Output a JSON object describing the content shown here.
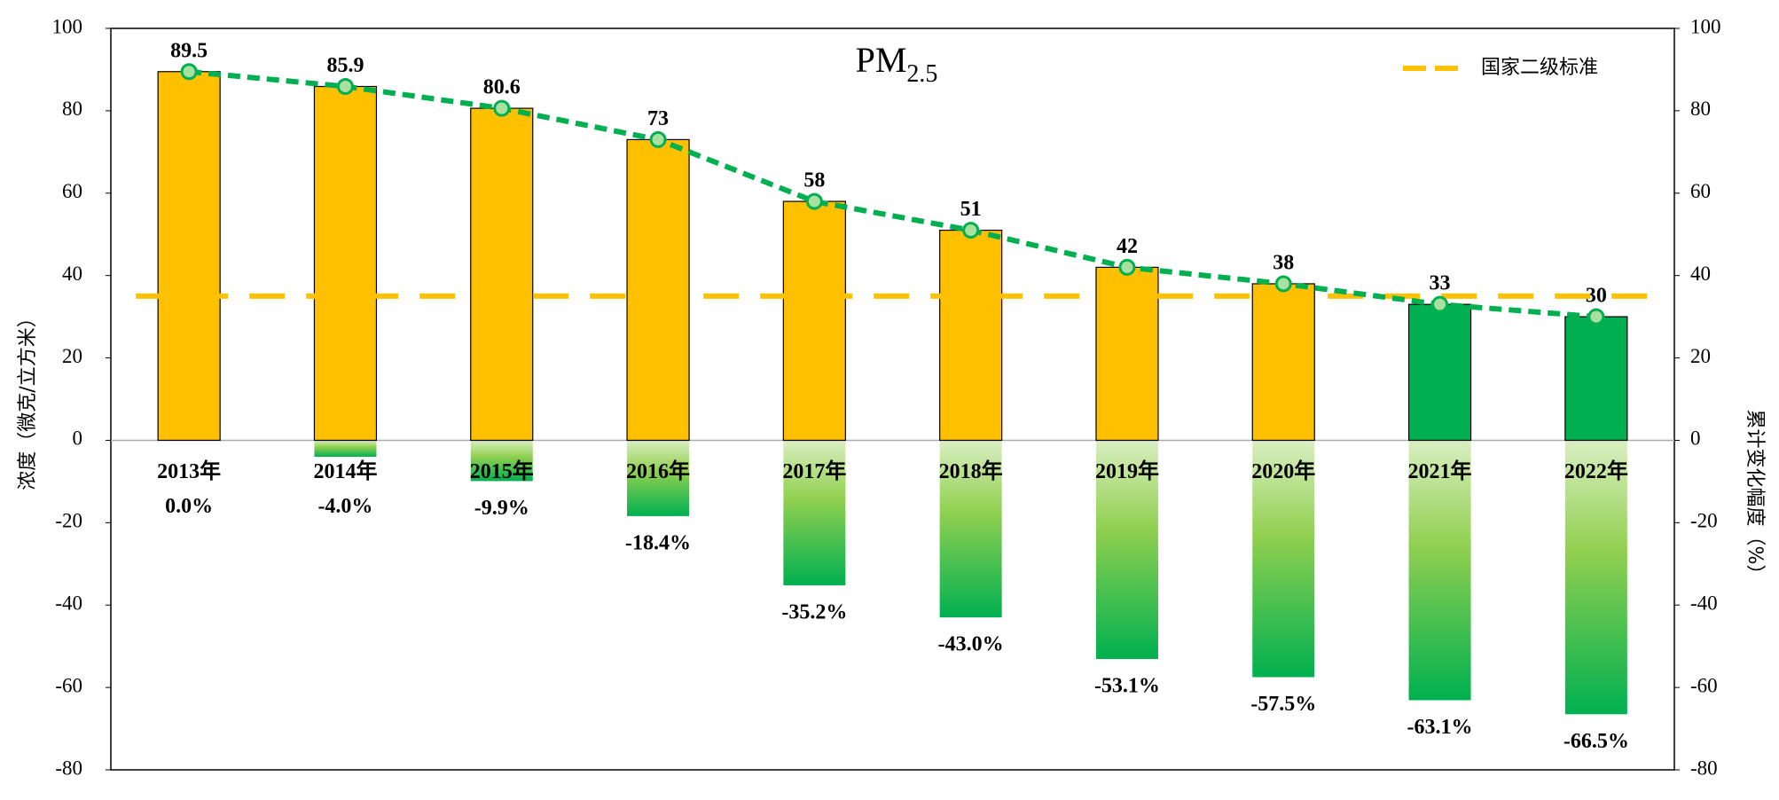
{
  "chart_data": {
    "type": "bar",
    "title": "PM",
    "title_subscript": "2.5",
    "ylabel": "浓度（微克/立方米）",
    "y2label": "累计变化幅度（%）",
    "categories": [
      "2013年",
      "2014年",
      "2015年",
      "2016年",
      "2017年",
      "2018年",
      "2019年",
      "2020年",
      "2021年",
      "2022年"
    ],
    "series": [
      {
        "type": "bar",
        "values": [
          89.5,
          85.9,
          80.6,
          73,
          58,
          51,
          42,
          38,
          33,
          30
        ],
        "colors": [
          "#ffc000",
          "#ffc000",
          "#ffc000",
          "#ffc000",
          "#ffc000",
          "#ffc000",
          "#ffc000",
          "#ffc000",
          "#00b050",
          "#00b050"
        ]
      },
      {
        "type": "line",
        "color": "#00b050",
        "values": [
          89.5,
          85.9,
          80.6,
          73,
          58,
          51,
          42,
          38,
          33,
          30
        ]
      },
      {
        "type": "bar",
        "axis": "y2",
        "color": "#00b050",
        "values": [
          0.0,
          -4.0,
          -9.9,
          -18.4,
          -35.2,
          -43.0,
          -53.1,
          -57.5,
          -63.1,
          -66.5
        ],
        "value_labels": [
          "0.0%",
          "-4.0%",
          "-9.9%",
          "-18.4%",
          "-35.2%",
          "-43.0%",
          "-53.1%",
          "-57.5%",
          "-63.1%",
          "-66.5%"
        ]
      }
    ],
    "reference_line": {
      "name": "国家二级标准",
      "value": 35,
      "color": "#ffc000"
    },
    "legend": "upper right",
    "ylim": [
      -80,
      100
    ],
    "yticks": [
      -80,
      -60,
      -40,
      -20,
      0,
      20,
      40,
      60,
      80,
      100
    ],
    "y2lim": [
      -80,
      100
    ],
    "y2ticks": [
      -80,
      -60,
      -40,
      -20,
      0,
      20,
      40,
      60,
      80,
      100
    ]
  }
}
